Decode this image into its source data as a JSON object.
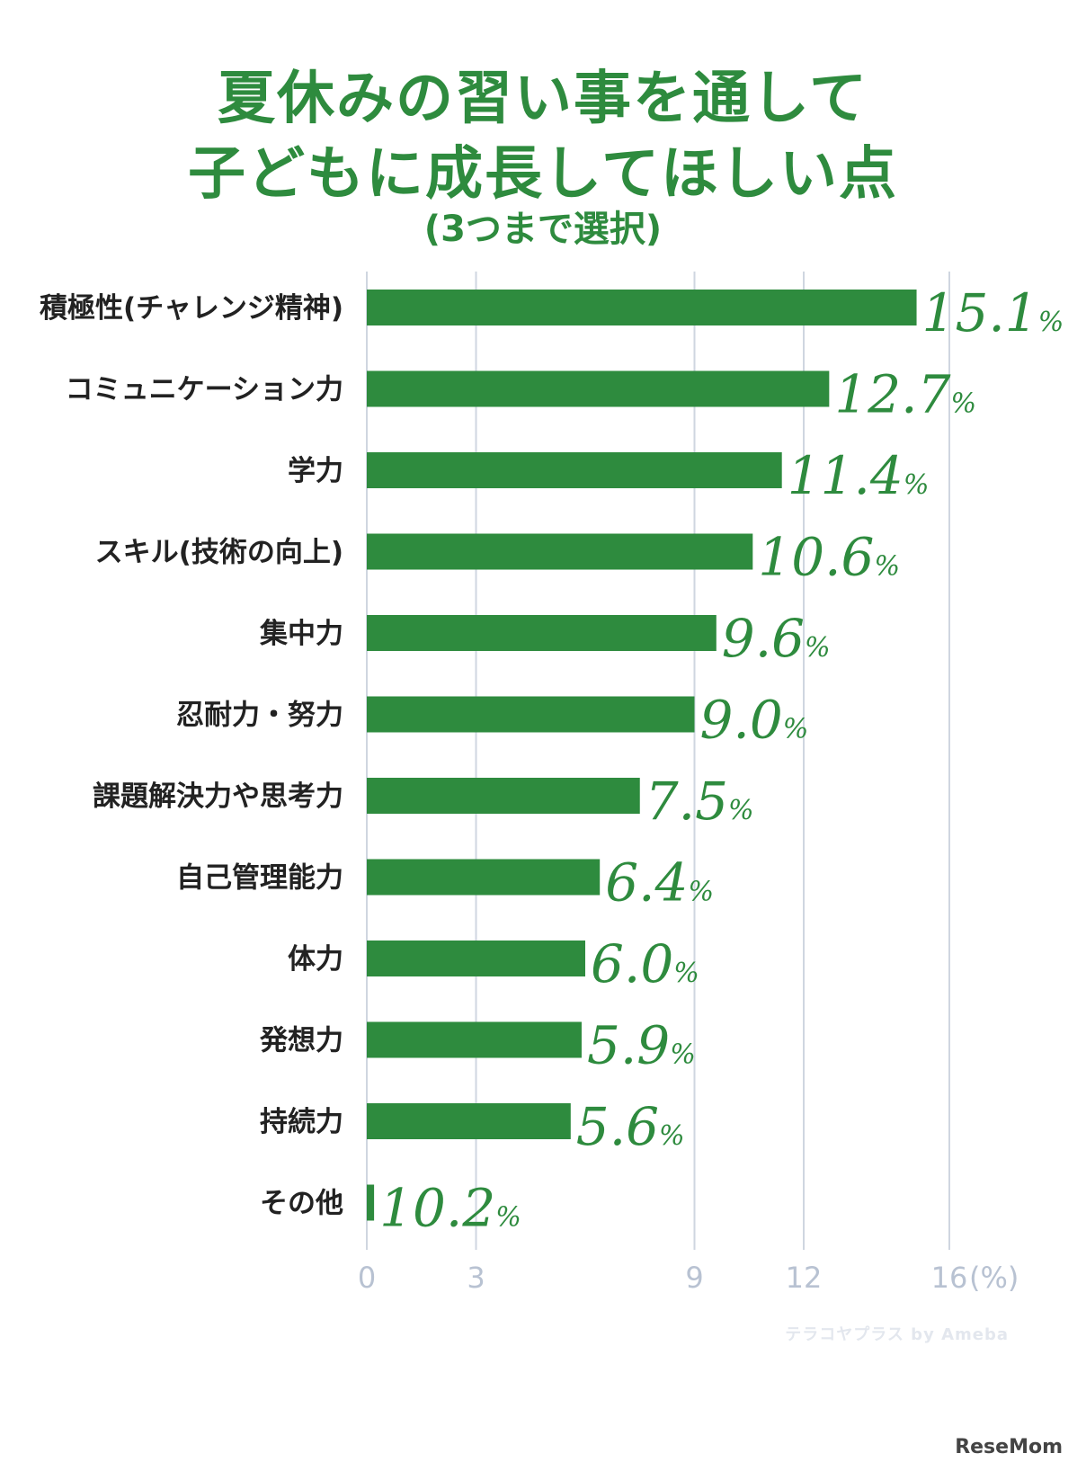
{
  "title_line1": "夏休みの習い事を通して",
  "title_line2": "子どもに成長してほしい点",
  "subtitle": "(3つまで選択)",
  "watermark": "テラコヤプラス by Ameba",
  "brand": "ReseMom",
  "colors": {
    "bar": "#2e8b3e",
    "label": "#2e8b3e",
    "grid": "#cfd6e0",
    "tick": "#b8c2d2",
    "category": "#222222"
  },
  "chart_data": {
    "type": "bar",
    "orientation": "horizontal",
    "title": "夏休みの習い事を通して子どもに成長してほしい点",
    "subtitle": "(3つまで選択)",
    "categories": [
      "積極性(チャレンジ精神)",
      "コミュニケーション力",
      "学力",
      "スキル(技術の向上)",
      "集中力",
      "忍耐力・努力",
      "課題解決力や思考力",
      "自己管理能力",
      "体力",
      "発想力",
      "持続力",
      "その他"
    ],
    "values": [
      15.1,
      12.7,
      11.4,
      10.6,
      9.6,
      9.0,
      7.5,
      6.4,
      6.0,
      5.9,
      5.6,
      0.2
    ],
    "value_labels": [
      "15.1",
      "12.7",
      "11.4",
      "10.6",
      "9.6",
      "9.0",
      "7.5",
      "6.4",
      "6.0",
      "5.9",
      "5.6",
      "0.2"
    ],
    "value_suffix": "%",
    "other_label_prefix": "1",
    "ticks": [
      0,
      3,
      9,
      12,
      16
    ],
    "tick_labels": [
      "0",
      "3",
      "9",
      "12",
      "16"
    ],
    "unit_label": "(%)",
    "xlim": [
      0,
      16
    ],
    "grid": true
  }
}
